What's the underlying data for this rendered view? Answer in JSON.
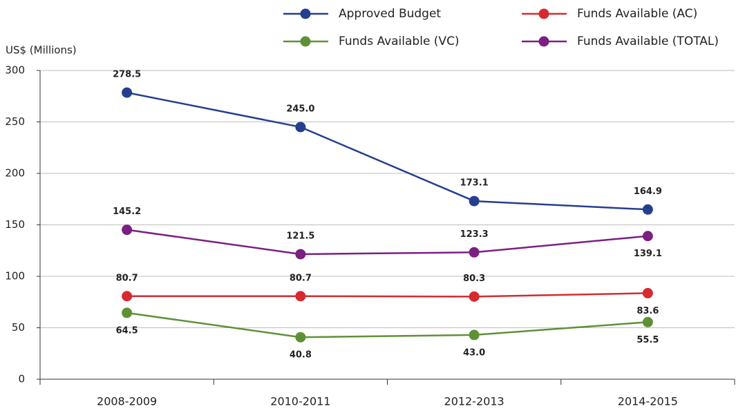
{
  "chart_data": {
    "type": "line",
    "y_axis_label": "US$ (Millions)",
    "categories": [
      "2008-2009",
      "2010-2011",
      "2012-2013",
      "2014-2015"
    ],
    "series": [
      {
        "name": "Approved Budget",
        "color": "#253f8e",
        "values": [
          278.5,
          245.0,
          173.1,
          164.9
        ],
        "value_labels": [
          "278.5",
          "245.0",
          "173.1",
          "164.9"
        ]
      },
      {
        "name": "Funds Available (AC)",
        "color": "#d62a2f",
        "values": [
          80.7,
          80.7,
          80.3,
          83.6
        ],
        "value_labels": [
          "80.7",
          "80.7",
          "80.3",
          "83.6"
        ]
      },
      {
        "name": "Funds Available (VC)",
        "color": "#5e9136",
        "values": [
          64.5,
          40.8,
          43.0,
          55.5
        ],
        "value_labels": [
          "64.5",
          "40.8",
          "43.0",
          "55.5"
        ]
      },
      {
        "name": "Funds Available (TOTAL)",
        "color": "#7b1f80",
        "values": [
          145.2,
          121.5,
          123.3,
          139.1
        ],
        "value_labels": [
          "145.2",
          "121.5",
          "123.3",
          "139.1"
        ]
      }
    ],
    "ylim": [
      0,
      300
    ],
    "yticks": [
      0,
      50,
      100,
      150,
      200,
      250,
      300
    ],
    "grid": true,
    "legend": "top"
  }
}
